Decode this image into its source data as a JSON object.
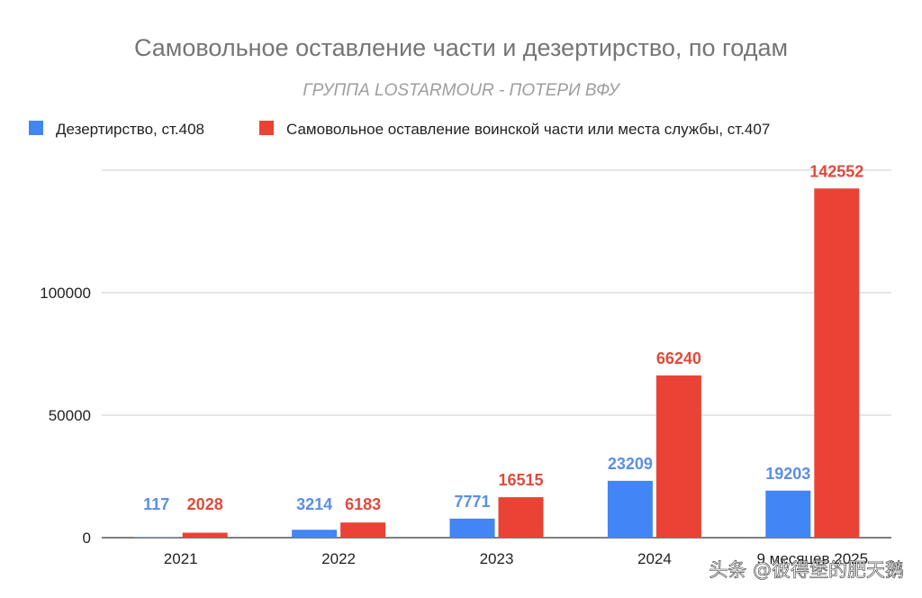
{
  "chart_data": {
    "type": "bar",
    "title": "Самовольное оставление части и дезертирство, по годам",
    "subtitle": "ГРУППА LOSTARMOUR - ПОТЕРИ ВФУ",
    "xlabel": "",
    "ylabel": "",
    "categories": [
      "2021",
      "2022",
      "2023",
      "2024",
      "9 месяцев 2025"
    ],
    "series": [
      {
        "name": "Дезертирство, ст.408",
        "color": "#4285f4",
        "label_color": "#5b8ee6",
        "values": [
          117,
          3214,
          7771,
          23209,
          19203
        ]
      },
      {
        "name": "Самовольное оставление воинской части или места службы, ст.407",
        "color": "#ea4335",
        "label_color": "#e04a3a",
        "values": [
          2028,
          6183,
          16515,
          66240,
          142552
        ]
      }
    ],
    "yticks": [
      0,
      50000,
      100000
    ],
    "ylim": [
      0,
      150000
    ],
    "grid": true,
    "legend_position": "top-left"
  },
  "watermark": "头条 @彼得堡的肥天鹅"
}
